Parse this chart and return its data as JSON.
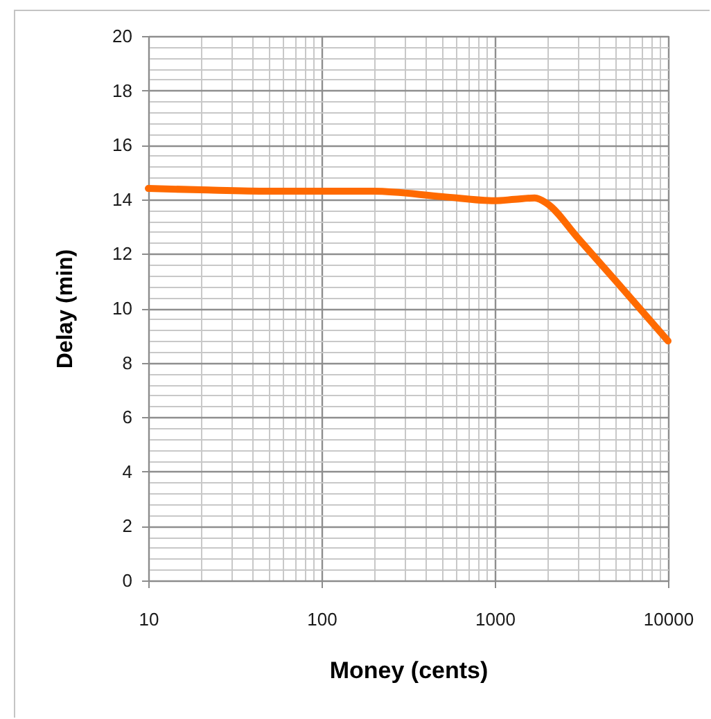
{
  "chart_data": {
    "type": "line",
    "xlabel": "Money (cents)",
    "ylabel": "Delay (min)",
    "x": [
      10,
      20,
      50,
      100,
      200,
      500,
      1000,
      1300,
      1700,
      2000,
      3000,
      5000,
      10000
    ],
    "series": [
      {
        "color": "#ff6a00",
        "values": [
          14.4,
          14.35,
          14.3,
          14.3,
          14.3,
          14.1,
          13.95,
          14.0,
          14.05,
          13.85,
          12.6,
          11.0,
          8.8
        ]
      }
    ],
    "xlim": [
      10,
      10000
    ],
    "ylim": [
      0,
      20
    ],
    "log": "x",
    "grid": true,
    "marker": "none",
    "line_style": "solid",
    "xticks": [
      10,
      {
        "value": 20,
        "label": null
      },
      {
        "value": 30,
        "label": null
      },
      {
        "value": 40,
        "label": null
      },
      {
        "value": 50,
        "label": null
      },
      {
        "value": 60,
        "label": null
      },
      {
        "value": 70,
        "label": null
      },
      {
        "value": 80,
        "label": null
      },
      {
        "value": 90,
        "label": null
      },
      100,
      {
        "value": 200,
        "label": null
      },
      {
        "value": 300,
        "label": null
      },
      {
        "value": 400,
        "label": null
      },
      {
        "value": 500,
        "label": null
      },
      {
        "value": 600,
        "label": null
      },
      {
        "value": 700,
        "label": null
      },
      {
        "value": 800,
        "label": null
      },
      {
        "value": 900,
        "label": null
      },
      1000,
      {
        "value": 2000,
        "label": null
      },
      {
        "value": 3000,
        "label": null
      },
      {
        "value": 4000,
        "label": null
      },
      {
        "value": 5000,
        "label": null
      },
      {
        "value": 6000,
        "label": null
      },
      {
        "value": 7000,
        "label": null
      },
      {
        "value": 8000,
        "label": null
      },
      {
        "value": 9000,
        "label": null
      },
      10000
    ],
    "yticks": [
      0,
      {
        "value": 0.4,
        "label": null
      },
      {
        "value": 0.8,
        "label": null
      },
      {
        "value": 1.2,
        "label": null
      },
      {
        "value": 1.6,
        "label": null
      },
      2,
      {
        "value": 2.4,
        "label": null
      },
      {
        "value": 2.8,
        "label": null
      },
      {
        "value": 3.2,
        "label": null
      },
      {
        "value": 3.6,
        "label": null
      },
      4,
      {
        "value": 4.4,
        "label": null
      },
      {
        "value": 4.8,
        "label": null
      },
      {
        "value": 5.2,
        "label": null
      },
      {
        "value": 5.6,
        "label": null
      },
      6,
      {
        "value": 6.4,
        "label": null
      },
      {
        "value": 6.8,
        "label": null
      },
      {
        "value": 7.2,
        "label": null
      },
      {
        "value": 7.6,
        "label": null
      },
      8,
      {
        "value": 8.4,
        "label": null
      },
      {
        "value": 8.8,
        "label": null
      },
      {
        "value": 9.2,
        "label": null
      },
      {
        "value": 9.6,
        "label": null
      },
      10,
      {
        "value": 10.4,
        "label": null
      },
      {
        "value": 10.8,
        "label": null
      },
      {
        "value": 11.2,
        "label": null
      },
      {
        "value": 11.6,
        "label": null
      },
      12,
      {
        "value": 12.4,
        "label": null
      },
      {
        "value": 12.8,
        "label": null
      },
      {
        "value": 13.2,
        "label": null
      },
      {
        "value": 13.6,
        "label": null
      },
      14,
      {
        "value": 14.4,
        "label": null
      },
      {
        "value": 14.8,
        "label": null
      },
      {
        "value": 15.2,
        "label": null
      },
      {
        "value": 15.6,
        "label": null
      },
      16,
      {
        "value": 16.4,
        "label": null
      },
      {
        "value": 16.8,
        "label": null
      },
      {
        "value": 17.2,
        "label": null
      },
      {
        "value": 17.6,
        "label": null
      },
      18,
      {
        "value": 18.4,
        "label": null
      },
      {
        "value": 18.8,
        "label": null
      },
      {
        "value": 19.2,
        "label": null
      },
      {
        "value": 19.6,
        "label": null
      },
      20
    ]
  }
}
